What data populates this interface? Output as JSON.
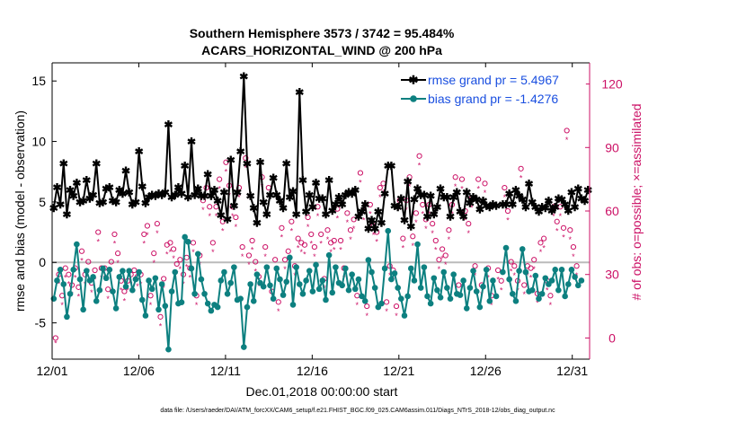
{
  "chart_data": {
    "type": "line",
    "title": "Southern Hemisphere 3573 / 3742 = 95.484%",
    "subtitle": "ACARS_HORIZONTAL_WIND @ 200 hPa",
    "xlabel": "Dec.01,2018 00:00:00 start",
    "ylabel": "rmse and bias (model - observation)",
    "ylabel_right": "# of obs: o=possible; ×=assimilated",
    "footnote": "data file: /Users/raeder/DAI/ATM_forcXX/CAM6_setup/f.e21.FHIST_BGC.f09_025.CAM6assim.011/Diags_NTrS_2018-12/obs_diag_output.nc",
    "x_tick_labels": [
      "12/01",
      "12/06",
      "12/11",
      "12/16",
      "12/21",
      "12/26",
      "12/31"
    ],
    "x_tick_days": [
      0,
      5,
      10,
      15,
      20,
      25,
      30
    ],
    "xlim": [
      0,
      31
    ],
    "ylim": [
      -8,
      16.5
    ],
    "yticks": [
      -5,
      0,
      5,
      10,
      15
    ],
    "ylim_right": [
      -10,
      130
    ],
    "yticks_right": [
      0,
      30,
      60,
      90,
      120
    ],
    "colors": {
      "rmse": "#000000",
      "bias": "#0d8080",
      "obs": "#cc1166",
      "zero": "#bbbbbb"
    },
    "series": [
      {
        "name": "rmse",
        "legend": "rmse grand pr = 5.4967",
        "values": [
          4.5,
          6.2,
          4.8,
          8.2,
          4.0,
          6.0,
          5.5,
          6.6,
          5.0,
          5.1,
          6.8,
          5.3,
          5.6,
          8.2,
          4.9,
          5.0,
          6.1,
          6.2,
          5.1,
          5.0,
          6.0,
          5.7,
          7.6,
          5.8,
          4.8,
          5.0,
          9.2,
          6.3,
          4.9,
          5.4,
          5.6,
          5.5,
          5.7,
          5.6,
          5.8,
          11.4,
          5.4,
          5.6,
          6.2,
          5.7,
          8.0,
          5.4,
          10.0,
          5.6,
          6.1,
          5.5,
          5.5,
          7.3,
          5.5,
          6.0,
          5.1,
          3.9,
          5.8,
          3.6,
          8.5,
          4.7,
          5.8,
          9.2,
          15.4,
          8.2,
          5.5,
          4.5,
          3.3,
          8.3,
          5.0,
          4.0,
          5.6,
          7.0,
          5.6,
          5.1,
          4.5,
          8.2,
          5.4,
          5.9,
          4.0,
          14.1,
          6.8,
          4.2,
          5.6,
          4.6,
          6.6,
          5.3,
          5.3,
          4.0,
          6.8,
          4.3,
          4.8,
          5.4,
          4.8,
          5.6,
          5.8,
          5.7,
          6.0,
          3.8,
          4.2,
          4.8,
          2.8,
          3.5,
          2.8,
          4.2,
          3.3,
          5.7,
          8.0,
          8.0,
          4.7,
          4.6,
          5.3,
          3.5,
          6.7,
          3.0,
          5.2,
          6.1,
          5.6,
          5.6,
          3.8,
          5.5,
          4.0,
          4.6,
          6.1,
          5.4,
          5.4,
          3.8,
          5.4,
          5.8,
          4.2,
          3.8,
          5.8,
          4.9,
          5.4,
          5.2,
          4.4,
          5.1,
          4.7,
          4.6,
          4.8,
          4.7,
          null,
          4.8,
          4.8,
          5.7,
          4.8,
          6.0,
          5.5,
          5.2,
          4.6,
          6.5,
          5.0,
          4.6,
          4.2,
          4.6,
          4.5,
          5.1,
          4.3,
          4.6,
          5.3,
          5.2,
          4.8,
          4.3,
          5.8,
          4.6,
          6.1,
          5.3,
          5.1,
          6.0
        ]
      },
      {
        "name": "bias",
        "legend": "bias grand pr = -1.4276",
        "values": [
          -3.0,
          -1.5,
          -0.6,
          -1.8,
          -4.5,
          -2.6,
          -0.6,
          1.5,
          -1.4,
          -3.9,
          -0.7,
          -1.5,
          -1.2,
          -3.2,
          -2.3,
          -0.5,
          -1.3,
          -0.6,
          -2.4,
          -3.8,
          -1.2,
          -0.7,
          -2.0,
          -0.7,
          -2.3,
          -1.4,
          -0.8,
          -3.1,
          -4.4,
          -1.5,
          -2.2,
          -1.3,
          -3.9,
          -1.8,
          -3.6,
          -7.2,
          -2.4,
          -0.8,
          -3.4,
          -3.3,
          2.1,
          1.7,
          -0.5,
          -2.6,
          0.7,
          -1.4,
          -2.6,
          -3.4,
          -4.0,
          -3.5,
          -3.7,
          -1.5,
          -0.8,
          -2.6,
          -1.7,
          -0.4,
          -3.1,
          -3.0,
          -7.0,
          -3.7,
          -1.8,
          -3.2,
          -1.0,
          -1.7,
          -2.0,
          -0.4,
          -1.9,
          -3.0,
          -0.5,
          -1.4,
          -2.7,
          -1.6,
          0.4,
          -3.5,
          -0.4,
          -1.8,
          -2.6,
          -1.5,
          -0.7,
          -2.4,
          -0.2,
          -2.2,
          -1.5,
          -3.1,
          0.6,
          -2.5,
          -0.4,
          -1.7,
          -1.9,
          -0.5,
          -2.3,
          -1.0,
          -2.2,
          -1.4,
          -2.8,
          -3.2,
          0.2,
          -0.8,
          -2.1,
          -3.7,
          -3.4,
          -0.5,
          2.6,
          -1.4,
          -0.9,
          -2.1,
          -3.0,
          -4.4,
          -2.8,
          -0.5,
          -1.5,
          1.5,
          -2.1,
          -0.4,
          -2.8,
          -3.4,
          -1.3,
          -2.3,
          -2.9,
          -0.8,
          -2.1,
          -3.0,
          -1.0,
          -2.6,
          -2.7,
          -1.5,
          -3.8,
          -2.1,
          -0.7,
          -2.4,
          -3.7,
          -2.0,
          -0.6,
          -3.2,
          -1.5,
          -2.8,
          null,
          -0.8,
          1.2,
          -1.4,
          -2.6,
          -3.2,
          -0.7,
          1.1,
          -0.8,
          -2.4,
          -2.3,
          -1.1,
          -3.0,
          -2.6,
          -1.3,
          -1.8,
          -1.5,
          -0.6,
          -2.3,
          -0.6,
          -2.8,
          -1.8,
          -0.6,
          -1.2,
          -1.9,
          -1.5
        ]
      },
      {
        "name": "obs_possible",
        "legend": "",
        "values": [
          0,
          30,
          20,
          33,
          30,
          25,
          33,
          24,
          41,
          30,
          36,
          26,
          32,
          50,
          33,
          33,
          23,
          36,
          49,
          40,
          27,
          22,
          27,
          30,
          32,
          29,
          30,
          49,
          53,
          20,
          40,
          54,
          10,
          28,
          44,
          45,
          42,
          35,
          37,
          30,
          38,
          33,
          45,
          20,
          39,
          65,
          71,
          62,
          45,
          62,
          75,
          55,
          83,
          72,
          62,
          57,
          71,
          43,
          85,
          39,
          46,
          36,
          29,
          76,
          43,
          71,
          22,
          37,
          17,
          52,
          37,
          41,
          55,
          34,
          47,
          45,
          44,
          57,
          49,
          43,
          62,
          49,
          28,
          51,
          45,
          46,
          61,
          46,
          33,
          59,
          51,
          56,
          20,
          78,
          60,
          15,
          63,
          53,
          50,
          71,
          73,
          17,
          34,
          32,
          15,
          65,
          47,
          65,
          76,
          48,
          59,
          86,
          63,
          56,
          63,
          54,
          46,
          37,
          42,
          39,
          51,
          63,
          76,
          25,
          75,
          60,
          54,
          66,
          34,
          75,
          25,
          73,
          33,
          20,
          null,
          32,
          27,
          71,
          60,
          36,
          34,
          27,
          80,
          25,
          34,
          33,
          37,
          21,
          45,
          47,
          27,
          20,
          62,
          55,
          62,
          52,
          98,
          51,
          43,
          34
        ]
      },
      {
        "name": "obs_assimilated",
        "legend": "",
        "values": [
          0,
          28,
          18,
          31,
          28,
          23,
          31,
          22,
          39,
          28,
          34,
          24,
          30,
          48,
          31,
          31,
          21,
          34,
          47,
          38,
          25,
          20,
          25,
          28,
          30,
          27,
          28,
          47,
          51,
          18,
          38,
          52,
          8,
          26,
          42,
          43,
          40,
          33,
          35,
          28,
          36,
          31,
          43,
          18,
          37,
          63,
          69,
          60,
          43,
          60,
          73,
          53,
          81,
          70,
          60,
          55,
          69,
          41,
          83,
          37,
          44,
          34,
          27,
          74,
          41,
          69,
          20,
          35,
          15,
          50,
          35,
          39,
          53,
          32,
          45,
          43,
          42,
          55,
          47,
          41,
          60,
          47,
          26,
          49,
          43,
          44,
          59,
          44,
          31,
          57,
          49,
          54,
          18,
          76,
          58,
          13,
          61,
          51,
          48,
          69,
          71,
          15,
          32,
          30,
          13,
          63,
          45,
          63,
          74,
          46,
          57,
          84,
          61,
          54,
          61,
          52,
          44,
          35,
          40,
          37,
          49,
          61,
          74,
          23,
          73,
          58,
          52,
          64,
          32,
          73,
          23,
          71,
          31,
          18,
          null,
          30,
          25,
          69,
          58,
          34,
          32,
          25,
          78,
          23,
          32,
          31,
          35,
          19,
          43,
          45,
          25,
          18,
          60,
          53,
          60,
          50,
          96,
          49,
          41,
          32
        ]
      }
    ]
  }
}
